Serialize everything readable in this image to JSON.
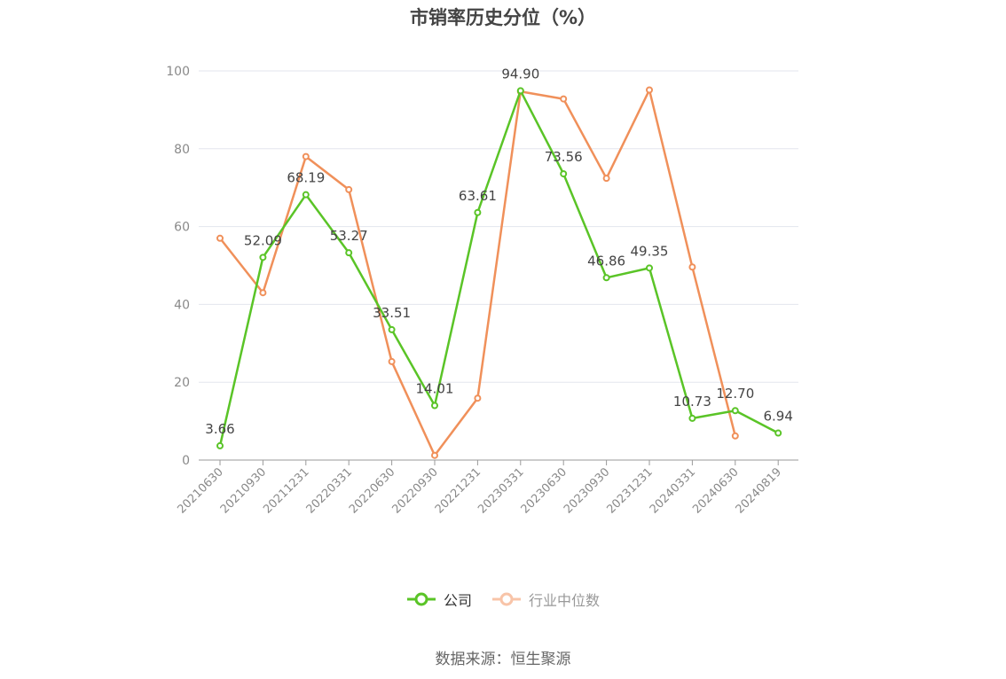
{
  "chart_data": {
    "type": "line",
    "title": "市销率历史分位（%）",
    "categories": [
      "20210630",
      "20210930",
      "20211231",
      "20220331",
      "20220630",
      "20220930",
      "20221231",
      "20230331",
      "20230630",
      "20230930",
      "20231231",
      "20240331",
      "20240630",
      "20240819"
    ],
    "ylim": [
      0,
      100
    ],
    "yticks": [
      0,
      20,
      40,
      60,
      80,
      100
    ],
    "grid": true,
    "legend_position": "bottom",
    "series": [
      {
        "name": "公司",
        "color": "#5ac427",
        "values": [
          3.66,
          52.09,
          68.19,
          53.27,
          33.51,
          14.01,
          63.61,
          94.9,
          73.56,
          46.86,
          49.35,
          10.73,
          12.7,
          6.94
        ],
        "labels": [
          "3.66",
          "52.09",
          "68.19",
          "53.27",
          "33.51",
          "14.01",
          "63.61",
          "94.90",
          "73.56",
          "46.86",
          "49.35",
          "10.73",
          "12.70",
          "6.94"
        ]
      },
      {
        "name": "行业中位数",
        "color": "#f0905a",
        "values": [
          57.0,
          43.0,
          78.0,
          69.5,
          25.3,
          1.2,
          15.9,
          94.7,
          92.8,
          72.4,
          95.1,
          49.6,
          6.2,
          null
        ]
      }
    ]
  },
  "legend": {
    "company": "公司",
    "industry": "行业中位数"
  },
  "source": "数据来源：恒生聚源"
}
